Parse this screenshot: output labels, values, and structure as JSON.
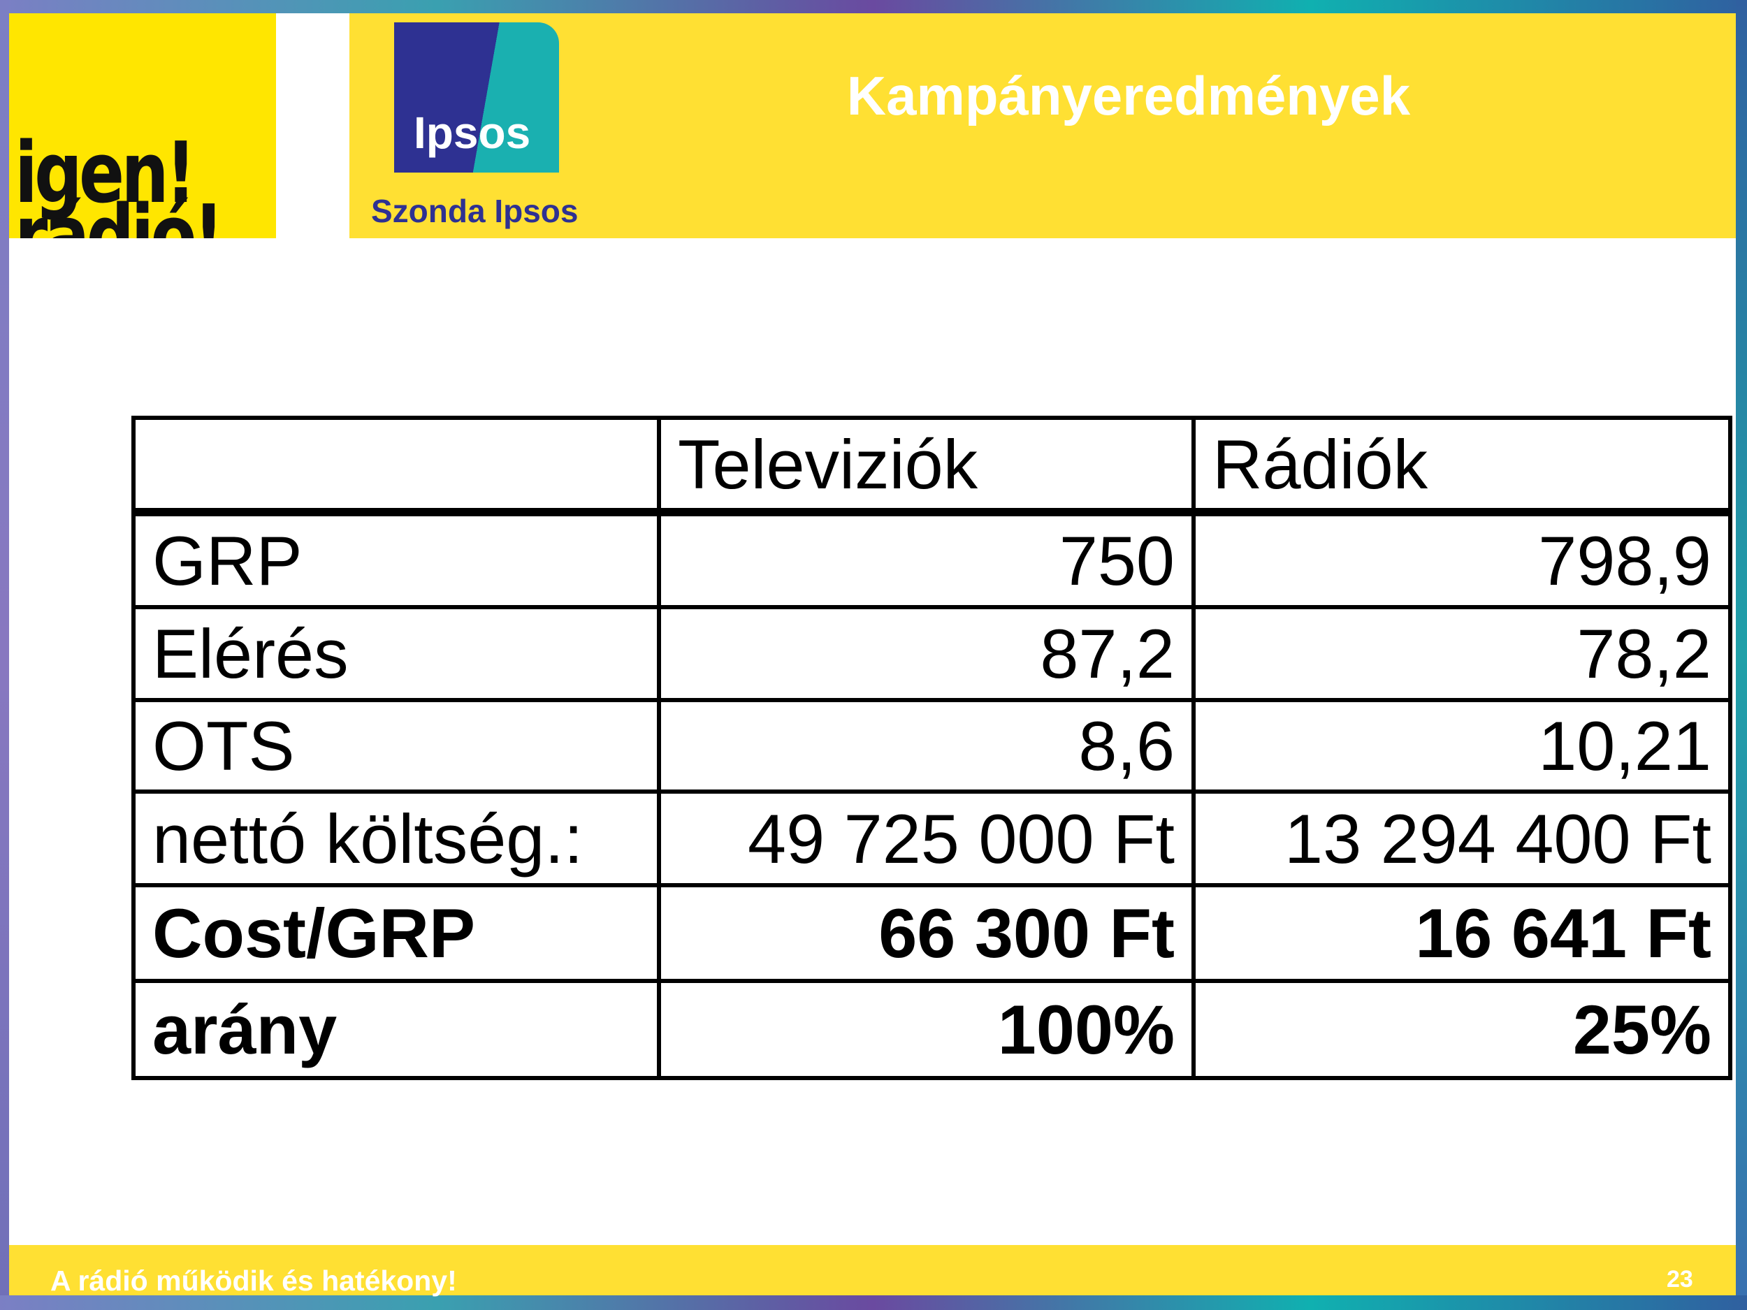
{
  "header": {
    "title": "Kampányeredmények",
    "brand_top": "igen!",
    "brand_bottom": "rádió!",
    "logo": "Ipsos",
    "logo_caption": "Szonda Ipsos"
  },
  "table": {
    "header": [
      "",
      "Televiziók",
      "Rádiók"
    ],
    "rows": [
      [
        "GRP",
        "750",
        "798,9"
      ],
      [
        "Elérés",
        "87,2",
        "78,2"
      ],
      [
        "OTS",
        "8,6",
        "10,21"
      ],
      [
        "nettó költség.:",
        "49 725 000 Ft",
        "13 294 400 Ft"
      ],
      [
        "Cost/GRP",
        "66 300 Ft",
        "16 641 Ft"
      ],
      [
        "arány",
        "100%",
        "25%"
      ]
    ]
  },
  "footer": {
    "text": "A rádió működik és hatékony!",
    "page": "23"
  }
}
